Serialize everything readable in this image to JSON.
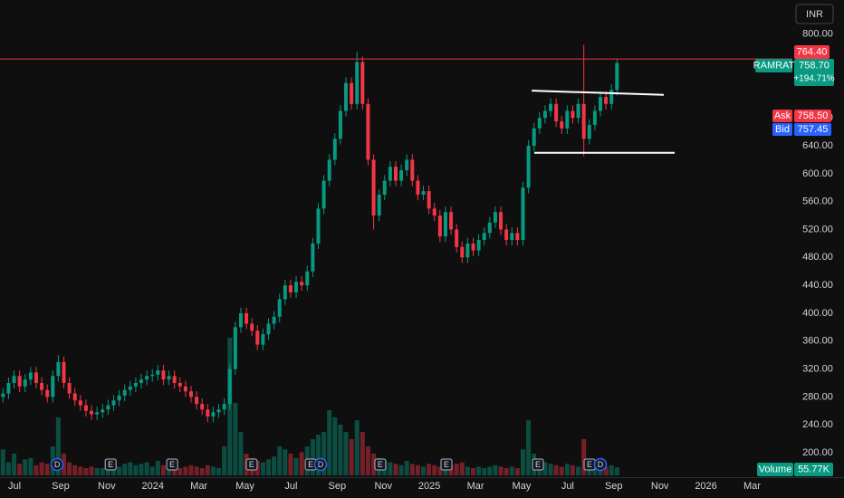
{
  "chart_data": {
    "type": "candlestick",
    "symbol": "RAMRAT",
    "currency": "INR",
    "x": [
      -0.5,
      -0.26,
      -0.02,
      0.22,
      0.46,
      0.7,
      0.94,
      1.18,
      1.42,
      1.66,
      1.9,
      2.14,
      2.38,
      2.62,
      2.86,
      3.1,
      3.34,
      3.58,
      3.82,
      4.06,
      4.3,
      4.54,
      4.78,
      5.02,
      5.26,
      5.5,
      5.74,
      5.98,
      6.22,
      6.46,
      6.7,
      6.94,
      7.18,
      7.42,
      7.66,
      7.9,
      8.14,
      8.38,
      8.62,
      8.86,
      9.1,
      9.34,
      9.58,
      9.82,
      10.06,
      10.3,
      10.54,
      10.78,
      11.02,
      11.26,
      11.5,
      11.74,
      11.98,
      12.22,
      12.46,
      12.7,
      12.94,
      13.18,
      13.42,
      13.66,
      13.9,
      14.14,
      14.38,
      14.62,
      14.86,
      15.1,
      15.34,
      15.58,
      15.82,
      16.06,
      16.3,
      16.54,
      16.78,
      17.02,
      17.26,
      17.5,
      17.74,
      17.98,
      18.22,
      18.46,
      18.7,
      18.94,
      19.18,
      19.42,
      19.66,
      19.9,
      20.14,
      20.38,
      20.62,
      20.86,
      21.1,
      21.34,
      21.58,
      21.82,
      22.06,
      22.3,
      22.54,
      22.78,
      23.02,
      23.26,
      23.5,
      23.74,
      23.98,
      24.22,
      24.46,
      24.7,
      24.94,
      25.18,
      25.42,
      25.66,
      25.9,
      26.14
    ],
    "open": [
      280,
      285,
      300,
      310,
      295,
      305,
      315,
      300,
      290,
      280,
      310,
      330,
      300,
      285,
      275,
      268,
      260,
      255,
      258,
      262,
      268,
      275,
      282,
      290,
      295,
      300,
      305,
      310,
      312,
      318,
      305,
      310,
      300,
      295,
      288,
      280,
      270,
      262,
      252,
      258,
      262,
      270,
      320,
      380,
      400,
      385,
      375,
      355,
      370,
      385,
      395,
      420,
      440,
      430,
      445,
      440,
      460,
      500,
      550,
      590,
      620,
      650,
      690,
      730,
      700,
      760,
      700,
      620,
      540,
      570,
      590,
      610,
      590,
      605,
      620,
      590,
      570,
      575,
      550,
      540,
      510,
      545,
      520,
      495,
      480,
      500,
      490,
      505,
      515,
      530,
      545,
      520,
      505,
      515,
      505,
      580,
      640,
      665,
      680,
      690,
      700,
      675,
      665,
      690,
      680,
      700,
      650,
      670,
      690,
      710,
      700,
      720
    ],
    "high": [
      293,
      308,
      318,
      318,
      313,
      323,
      323,
      308,
      298,
      318,
      340,
      338,
      308,
      293,
      283,
      276,
      268,
      266,
      270,
      276,
      283,
      290,
      298,
      303,
      308,
      313,
      318,
      320,
      326,
      326,
      318,
      318,
      308,
      303,
      296,
      288,
      278,
      270,
      266,
      270,
      278,
      328,
      388,
      408,
      408,
      393,
      383,
      378,
      393,
      403,
      428,
      448,
      448,
      453,
      453,
      468,
      508,
      558,
      598,
      628,
      658,
      698,
      738,
      738,
      775,
      768,
      708,
      628,
      578,
      598,
      618,
      618,
      613,
      628,
      628,
      598,
      583,
      583,
      558,
      548,
      553,
      553,
      528,
      503,
      508,
      508,
      513,
      523,
      538,
      553,
      553,
      528,
      523,
      523,
      588,
      648,
      673,
      688,
      698,
      708,
      708,
      683,
      698,
      698,
      708,
      785,
      678,
      698,
      718,
      718,
      728,
      764.4
    ],
    "low": [
      272,
      277,
      292,
      287,
      287,
      297,
      292,
      282,
      272,
      272,
      302,
      292,
      277,
      267,
      260,
      252,
      247,
      247,
      250,
      254,
      260,
      267,
      274,
      282,
      287,
      292,
      297,
      302,
      304,
      297,
      297,
      292,
      287,
      280,
      272,
      262,
      254,
      244,
      244,
      250,
      254,
      262,
      312,
      372,
      377,
      367,
      347,
      347,
      362,
      377,
      387,
      412,
      422,
      422,
      432,
      432,
      452,
      492,
      542,
      582,
      612,
      642,
      682,
      692,
      692,
      692,
      612,
      520,
      532,
      562,
      582,
      582,
      582,
      597,
      582,
      562,
      562,
      542,
      532,
      502,
      502,
      512,
      487,
      472,
      472,
      482,
      482,
      497,
      507,
      522,
      512,
      497,
      497,
      497,
      497,
      572,
      632,
      657,
      672,
      682,
      667,
      657,
      657,
      672,
      672,
      625,
      642,
      662,
      682,
      692,
      692,
      712
    ],
    "close": [
      285,
      300,
      310,
      295,
      305,
      315,
      300,
      290,
      280,
      310,
      330,
      300,
      285,
      275,
      268,
      260,
      255,
      258,
      262,
      268,
      275,
      282,
      290,
      295,
      300,
      305,
      310,
      312,
      318,
      305,
      310,
      300,
      295,
      288,
      280,
      270,
      262,
      252,
      258,
      262,
      270,
      320,
      380,
      400,
      385,
      375,
      355,
      370,
      385,
      395,
      420,
      440,
      430,
      445,
      440,
      460,
      500,
      550,
      590,
      620,
      650,
      690,
      730,
      700,
      760,
      700,
      620,
      540,
      570,
      590,
      610,
      590,
      605,
      620,
      590,
      570,
      575,
      550,
      540,
      510,
      545,
      520,
      495,
      480,
      500,
      490,
      505,
      515,
      530,
      545,
      520,
      505,
      515,
      505,
      580,
      640,
      665,
      680,
      690,
      700,
      675,
      665,
      690,
      680,
      700,
      650,
      670,
      690,
      710,
      700,
      720,
      758.7
    ],
    "volume": [
      180000,
      90000,
      150000,
      80000,
      110000,
      120000,
      70000,
      90000,
      80000,
      200000,
      400000,
      150000,
      90000,
      70000,
      60000,
      50000,
      60000,
      50000,
      50000,
      60000,
      70000,
      60000,
      80000,
      90000,
      70000,
      80000,
      90000,
      60000,
      100000,
      70000,
      60000,
      60000,
      50000,
      60000,
      70000,
      60000,
      50000,
      70000,
      60000,
      50000,
      200000,
      950000,
      500000,
      300000,
      150000,
      120000,
      100000,
      90000,
      110000,
      130000,
      200000,
      180000,
      150000,
      120000,
      160000,
      200000,
      250000,
      280000,
      300000,
      450000,
      400000,
      350000,
      300000,
      250000,
      380000,
      300000,
      200000,
      150000,
      120000,
      100000,
      90000,
      80000,
      70000,
      100000,
      80000,
      70000,
      60000,
      80000,
      70000,
      60000,
      90000,
      70000,
      80000,
      90000,
      60000,
      50000,
      60000,
      50000,
      60000,
      70000,
      60000,
      50000,
      60000,
      50000,
      180000,
      380000,
      150000,
      100000,
      90000,
      80000,
      70000,
      60000,
      80000,
      70000,
      60000,
      250000,
      90000,
      80000,
      70000,
      60000,
      70000,
      55770
    ],
    "xlim": [
      -0.63,
      33.75
    ],
    "xticks": [
      {
        "value": 0,
        "label": "Jul"
      },
      {
        "value": 2,
        "label": "Sep"
      },
      {
        "value": 4,
        "label": "Nov"
      },
      {
        "value": 6,
        "label": "2024"
      },
      {
        "value": 8,
        "label": "Mar"
      },
      {
        "value": 10,
        "label": "May"
      },
      {
        "value": 12,
        "label": "Jul"
      },
      {
        "value": 14,
        "label": "Sep"
      },
      {
        "value": 16,
        "label": "Nov"
      },
      {
        "value": 18,
        "label": "2025"
      },
      {
        "value": 20,
        "label": "Mar"
      },
      {
        "value": 22,
        "label": "May"
      },
      {
        "value": 24,
        "label": "Jul"
      },
      {
        "value": 26,
        "label": "Sep"
      },
      {
        "value": 28,
        "label": "Nov"
      },
      {
        "value": 30,
        "label": "2026"
      },
      {
        "value": 32,
        "label": "Mar"
      }
    ],
    "ylim": [
      165,
      849
    ],
    "yticks": [
      {
        "value": 200,
        "label": "200.00"
      },
      {
        "value": 240,
        "label": "240.00"
      },
      {
        "value": 280,
        "label": "280.00"
      },
      {
        "value": 320,
        "label": "320.00"
      },
      {
        "value": 360,
        "label": "360.00"
      },
      {
        "value": 400,
        "label": "400.00"
      },
      {
        "value": 440,
        "label": "440.00"
      },
      {
        "value": 480,
        "label": "480.00"
      },
      {
        "value": 520,
        "label": "520.00"
      },
      {
        "value": 560,
        "label": "560.00"
      },
      {
        "value": 600,
        "label": "600.00"
      },
      {
        "value": 640,
        "label": "640.00"
      },
      {
        "value": 680,
        "label": "680.00"
      },
      {
        "value": 800,
        "label": "800.00"
      }
    ],
    "volume_ylim": [
      0,
      1000000
    ],
    "up_color": "#089981",
    "down_color": "#f23645",
    "grid": false,
    "last_price": {
      "value": 758.7,
      "label": "758.70"
    },
    "change": {
      "value": 194.71,
      "label": "+194.71%"
    },
    "high_line": {
      "value": 764.4,
      "label": "764.40"
    },
    "ask": {
      "name": "Ask",
      "value": 758.5,
      "label": "758.50"
    },
    "bid": {
      "name": "Bid",
      "value": 757.45,
      "label": "757.45"
    },
    "volume_name": "Volume",
    "last_volume": {
      "value": 55770,
      "label": "55.77K"
    },
    "trendlines": [
      {
        "x": [
          22.44,
          28.17
        ],
        "y": [
          719,
          713
        ]
      },
      {
        "x": [
          22.55,
          28.64
        ],
        "y": [
          630,
          630
        ]
      }
    ],
    "events": [
      {
        "x": 1.85,
        "label": "D"
      },
      {
        "x": 4.17,
        "label": "E"
      },
      {
        "x": 6.84,
        "label": "E"
      },
      {
        "x": 10.29,
        "label": "E"
      },
      {
        "x": 12.85,
        "label": "E"
      },
      {
        "x": 13.28,
        "label": "D"
      },
      {
        "x": 15.87,
        "label": "E"
      },
      {
        "x": 18.74,
        "label": "E"
      },
      {
        "x": 22.71,
        "label": "E"
      },
      {
        "x": 24.95,
        "label": "E"
      },
      {
        "x": 25.42,
        "label": "D"
      }
    ]
  }
}
